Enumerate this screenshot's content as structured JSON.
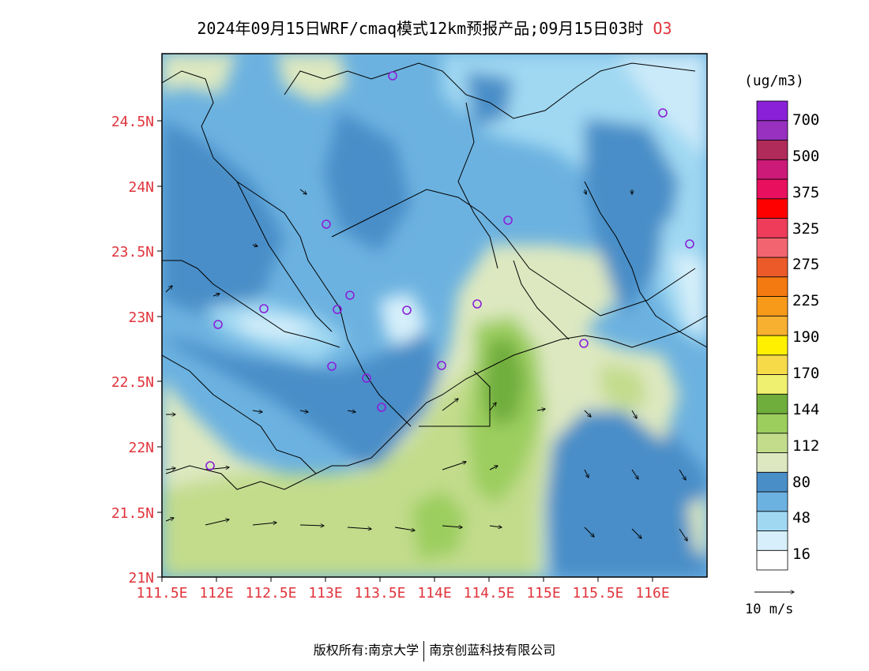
{
  "title": {
    "main": "2024年09月15日WRF/cmaq模式12km预报产品;09月15日03时",
    "species": "O3"
  },
  "map": {
    "lat_ticks": [
      "24.5N",
      "24N",
      "23.5N",
      "23N",
      "22.5N",
      "22N",
      "21.5N",
      "21N"
    ],
    "lon_ticks": [
      "111.5E",
      "112E",
      "112.5E",
      "113E",
      "113.5E",
      "114E",
      "114.5E",
      "115E",
      "115.5E",
      "116E"
    ],
    "lat_range": [
      21,
      25
    ],
    "lon_range": [
      111.5,
      116.5
    ]
  },
  "colorbar": {
    "unit": "(ug/m3)",
    "labels": [
      "700",
      "500",
      "375",
      "325",
      "275",
      "225",
      "190",
      "170",
      "144",
      "112",
      "80",
      "48",
      "16"
    ],
    "colors": [
      "#ffffff",
      "#d6effa",
      "#a0d8f2",
      "#6cb2e0",
      "#4a8ec8",
      "#dde8c0",
      "#c2dc8c",
      "#9cce5e",
      "#6fae3c",
      "#f0f070",
      "#f6da48",
      "#fff000",
      "#f8b030",
      "#f79a1a",
      "#f37a10",
      "#ec5a2a",
      "#f26570",
      "#ee3c5a",
      "#ff0000",
      "#e8105e",
      "#cc1a78",
      "#b02a5a",
      "#9830c0",
      "#8a20d8"
    ]
  },
  "wind": {
    "scale_label": "10 m/s"
  },
  "footer": {
    "left": "版权所有:南京大学",
    "right": "南京创蓝科技有限公司"
  },
  "colors": {
    "tick_red": "#e0343c",
    "station_purple": "#8a20d8"
  }
}
